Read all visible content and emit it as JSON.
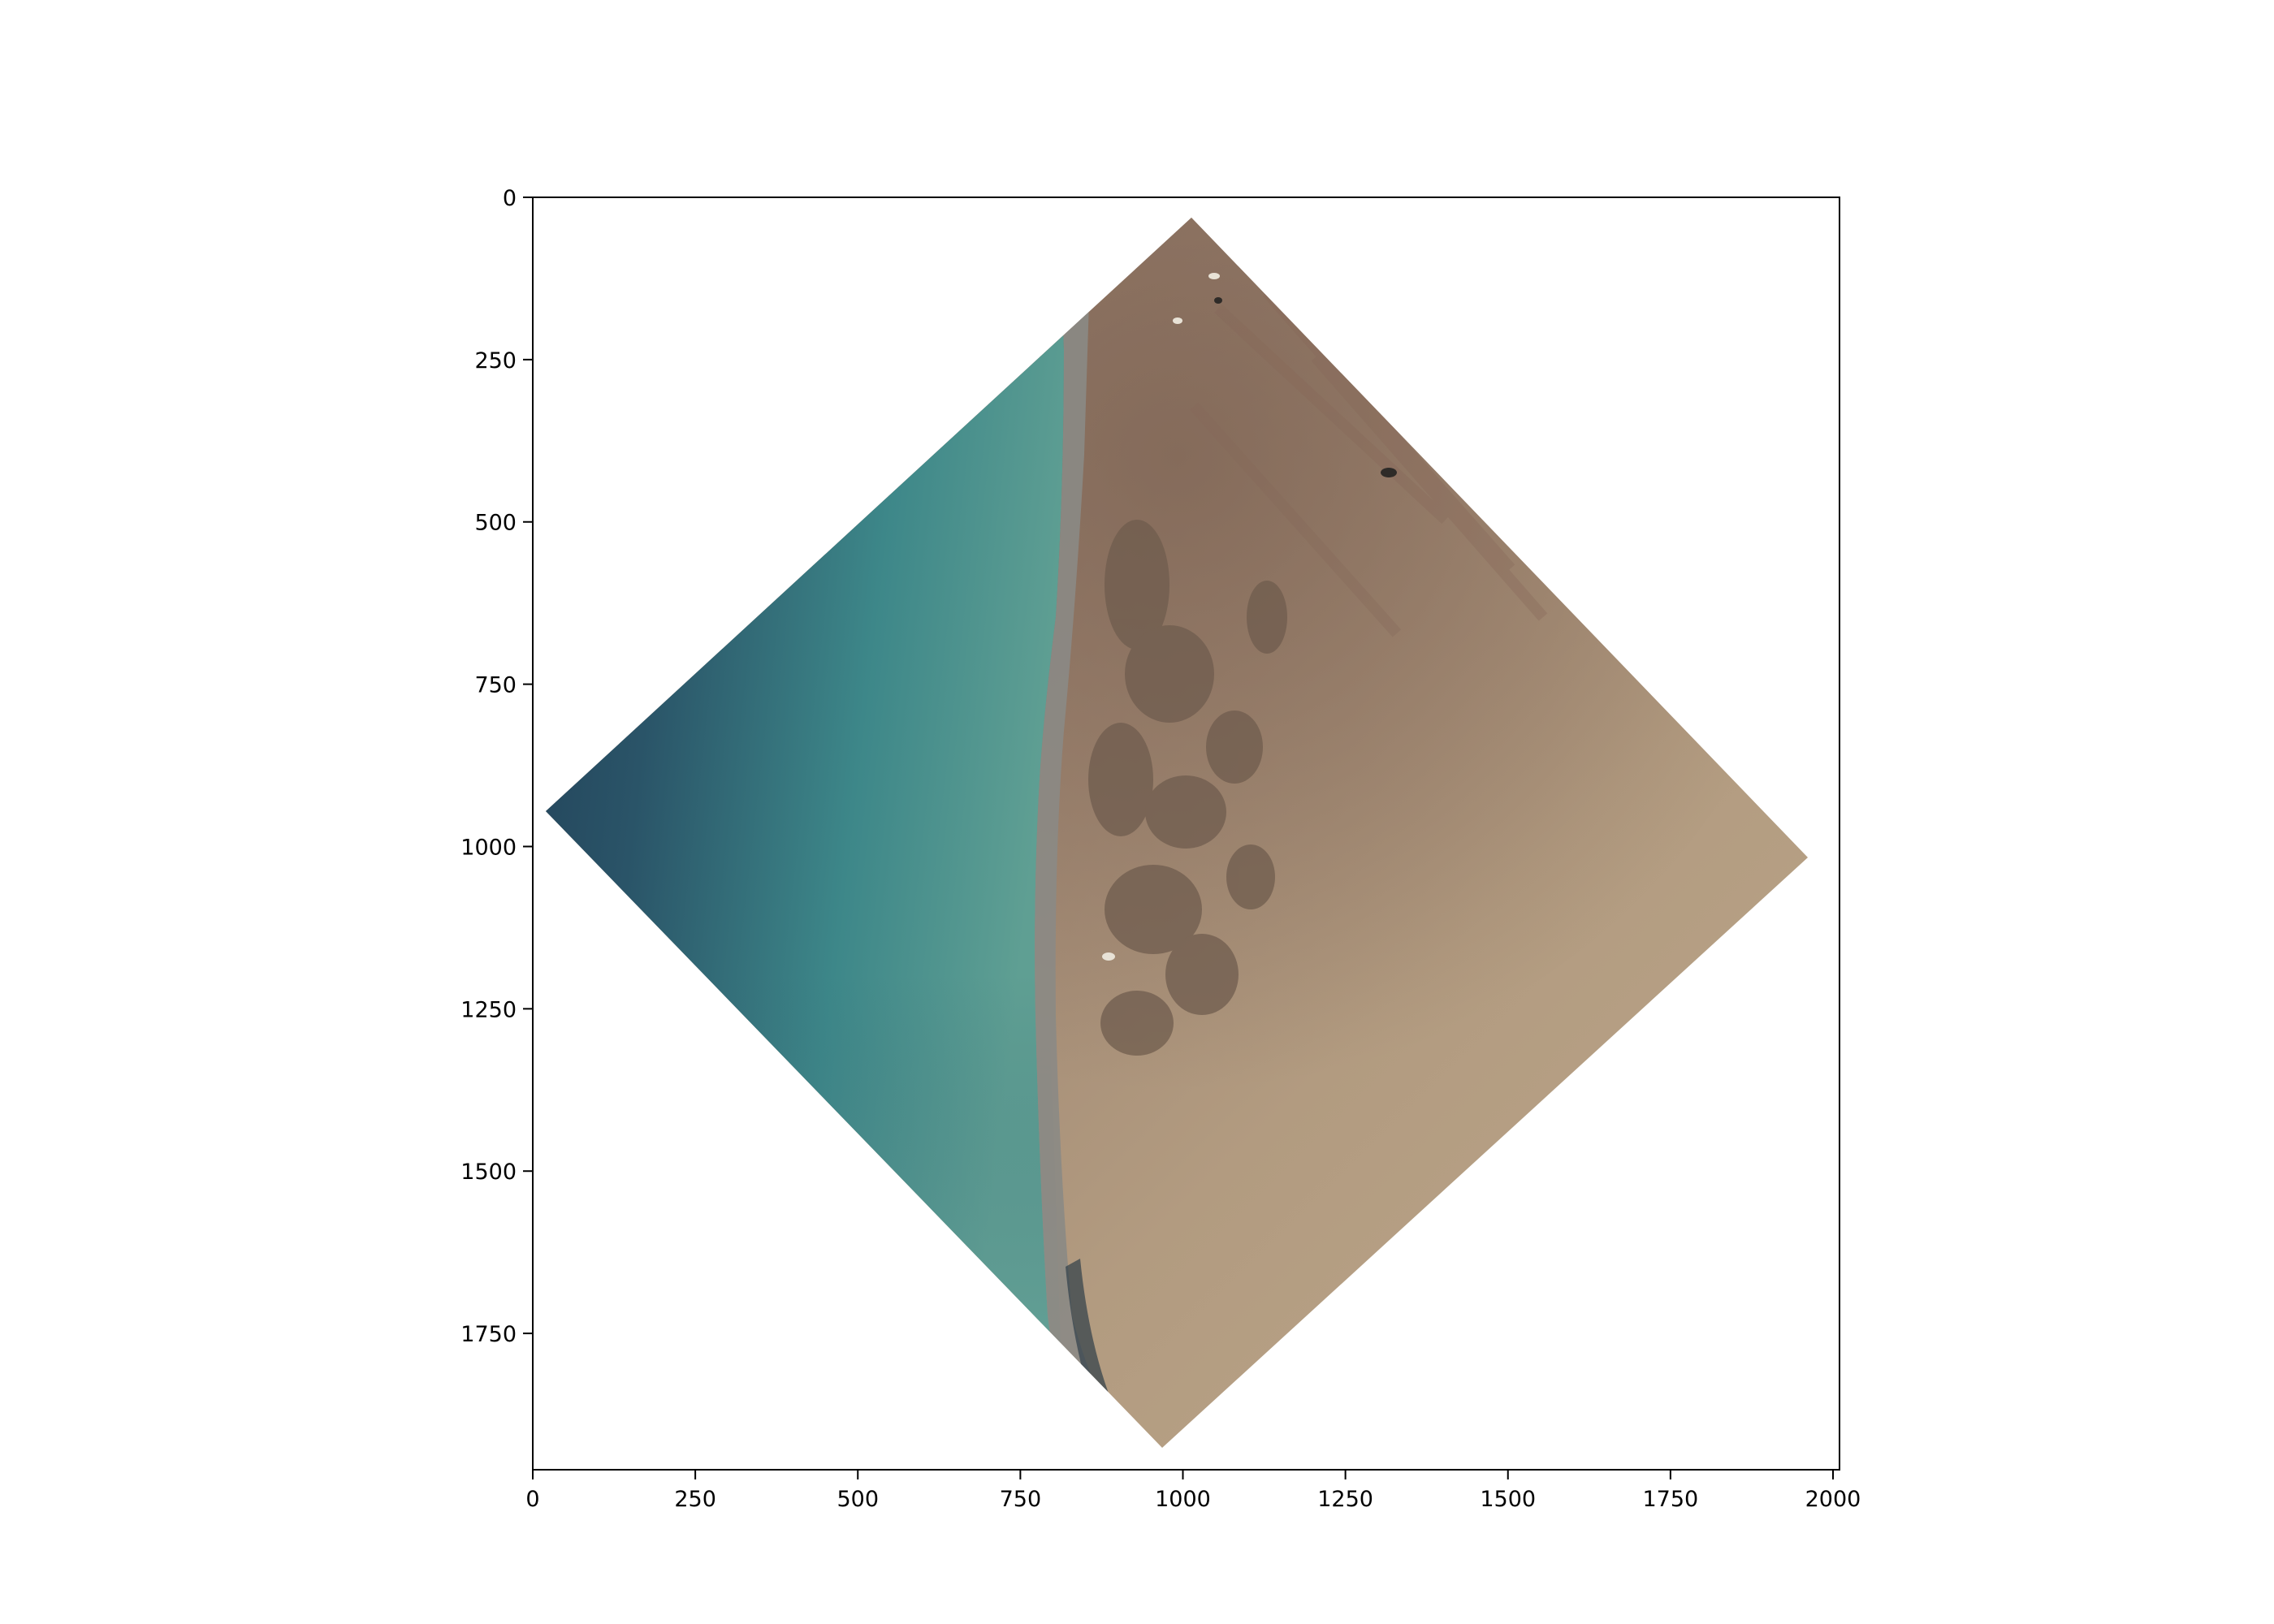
{
  "image": {
    "subject": "satellite-scene",
    "regions": [
      {
        "name": "water",
        "colors": [
          "#1f3a52",
          "#2c5a6b",
          "#3e8a8c",
          "#6aa89a"
        ]
      },
      {
        "name": "coastal-strip",
        "colors": [
          "#8a8a86",
          "#6d6c66",
          "#a39a8c"
        ]
      },
      {
        "name": "land",
        "colors": [
          "#8d7463",
          "#7a6656",
          "#a48f7a",
          "#b7a286",
          "#c2ad8f"
        ]
      }
    ]
  },
  "axes": {
    "x_ticks": [
      "0",
      "250",
      "500",
      "750",
      "1000",
      "1250",
      "1500",
      "1750",
      "2000"
    ],
    "y_ticks": [
      "0",
      "250",
      "500",
      "750",
      "1000",
      "1250",
      "1500",
      "1750"
    ],
    "xlim": [
      0,
      2010
    ],
    "ylim": [
      0,
      1960
    ],
    "frame_color": "#000000"
  }
}
